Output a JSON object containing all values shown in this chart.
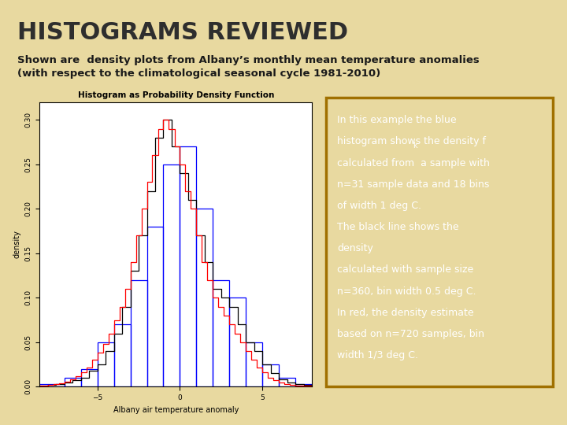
{
  "title": "HISTOGRAMS REVIEWED",
  "subtitle_line1": "Shown are  density plots from Albany’s monthly mean temperature anomalies",
  "subtitle_line2": "(with respect to the climatological seasonal cycle 1981-2010)",
  "background_color": "#e8d9a0",
  "title_color": "#2e2e2e",
  "subtitle_color": "#1a1a1a",
  "plot_title": "Histogram as Probability Density Function",
  "plot_xlabel": "Albany air temperature anomaly",
  "plot_ylabel": "density",
  "plot_bg": "#ffffff",
  "annotation_bg": "#d4900a",
  "annotation_text_color": "#ffffff",
  "annotation_border_color": "#a07000",
  "annotation_lines": [
    "In this example the blue",
    "histogram shows the density fₖ",
    "calculated from  a sample with",
    "n=31 sample data and 18 bins",
    "of width 1 deg C.",
    "The black line shows the",
    "density",
    "calculated with sample size",
    "n=360, bin width 0.5 deg C.",
    "In red, the density estimate",
    "based on n=720 samples, bin",
    "width 1/3 deg C."
  ],
  "blue_hist_edges": [
    -9,
    -8,
    -7,
    -6,
    -5,
    -4,
    -3,
    -2,
    -1,
    0,
    1,
    2,
    3,
    4,
    5,
    6,
    7,
    8,
    9
  ],
  "blue_hist_heights": [
    0.003,
    0.003,
    0.01,
    0.02,
    0.05,
    0.07,
    0.12,
    0.18,
    0.25,
    0.27,
    0.2,
    0.12,
    0.1,
    0.05,
    0.025,
    0.01,
    0.003,
    0.001
  ],
  "black_hist_edges": [
    -9.0,
    -8.5,
    -8.0,
    -7.5,
    -7.0,
    -6.5,
    -6.0,
    -5.5,
    -5.0,
    -4.5,
    -4.0,
    -3.5,
    -3.0,
    -2.5,
    -2.0,
    -1.5,
    -1.0,
    -0.5,
    0.0,
    0.5,
    1.0,
    1.5,
    2.0,
    2.5,
    3.0,
    3.5,
    4.0,
    4.5,
    5.0,
    5.5,
    6.0,
    6.5,
    7.0,
    7.5,
    8.0,
    8.5,
    9.0
  ],
  "black_hist_heights": [
    0.001,
    0.001,
    0.002,
    0.003,
    0.005,
    0.007,
    0.01,
    0.018,
    0.025,
    0.04,
    0.06,
    0.09,
    0.13,
    0.17,
    0.22,
    0.28,
    0.3,
    0.27,
    0.24,
    0.21,
    0.17,
    0.14,
    0.11,
    0.1,
    0.09,
    0.07,
    0.05,
    0.04,
    0.025,
    0.015,
    0.008,
    0.005,
    0.003,
    0.002,
    0.001,
    0.001
  ],
  "red_hist_edges": [
    -9.0,
    -8.67,
    -8.33,
    -8.0,
    -7.67,
    -7.33,
    -7.0,
    -6.67,
    -6.33,
    -6.0,
    -5.67,
    -5.33,
    -5.0,
    -4.67,
    -4.33,
    -4.0,
    -3.67,
    -3.33,
    -3.0,
    -2.67,
    -2.33,
    -2.0,
    -1.67,
    -1.33,
    -1.0,
    -0.67,
    -0.33,
    0.0,
    0.33,
    0.67,
    1.0,
    1.33,
    1.67,
    2.0,
    2.33,
    2.67,
    3.0,
    3.33,
    3.67,
    4.0,
    4.33,
    4.67,
    5.0,
    5.33,
    5.67,
    6.0,
    6.33,
    6.67,
    7.0,
    7.33,
    7.67,
    8.0,
    8.33,
    8.67,
    9.0
  ],
  "red_hist_heights": [
    0.001,
    0.001,
    0.001,
    0.002,
    0.003,
    0.004,
    0.006,
    0.008,
    0.012,
    0.016,
    0.022,
    0.03,
    0.038,
    0.048,
    0.06,
    0.075,
    0.09,
    0.11,
    0.14,
    0.17,
    0.2,
    0.23,
    0.26,
    0.29,
    0.3,
    0.29,
    0.27,
    0.25,
    0.22,
    0.2,
    0.17,
    0.14,
    0.12,
    0.1,
    0.09,
    0.08,
    0.07,
    0.06,
    0.05,
    0.04,
    0.03,
    0.022,
    0.016,
    0.01,
    0.007,
    0.005,
    0.003,
    0.002,
    0.001,
    0.001,
    0.001,
    0.001,
    0.001,
    0.001
  ],
  "ylim": [
    0,
    0.32
  ],
  "xlim": [
    -8.5,
    8.0
  ],
  "yticks": [
    0.0,
    0.05,
    0.1,
    0.15,
    0.2,
    0.25,
    0.3
  ],
  "xticks": [
    -5,
    0,
    5
  ]
}
